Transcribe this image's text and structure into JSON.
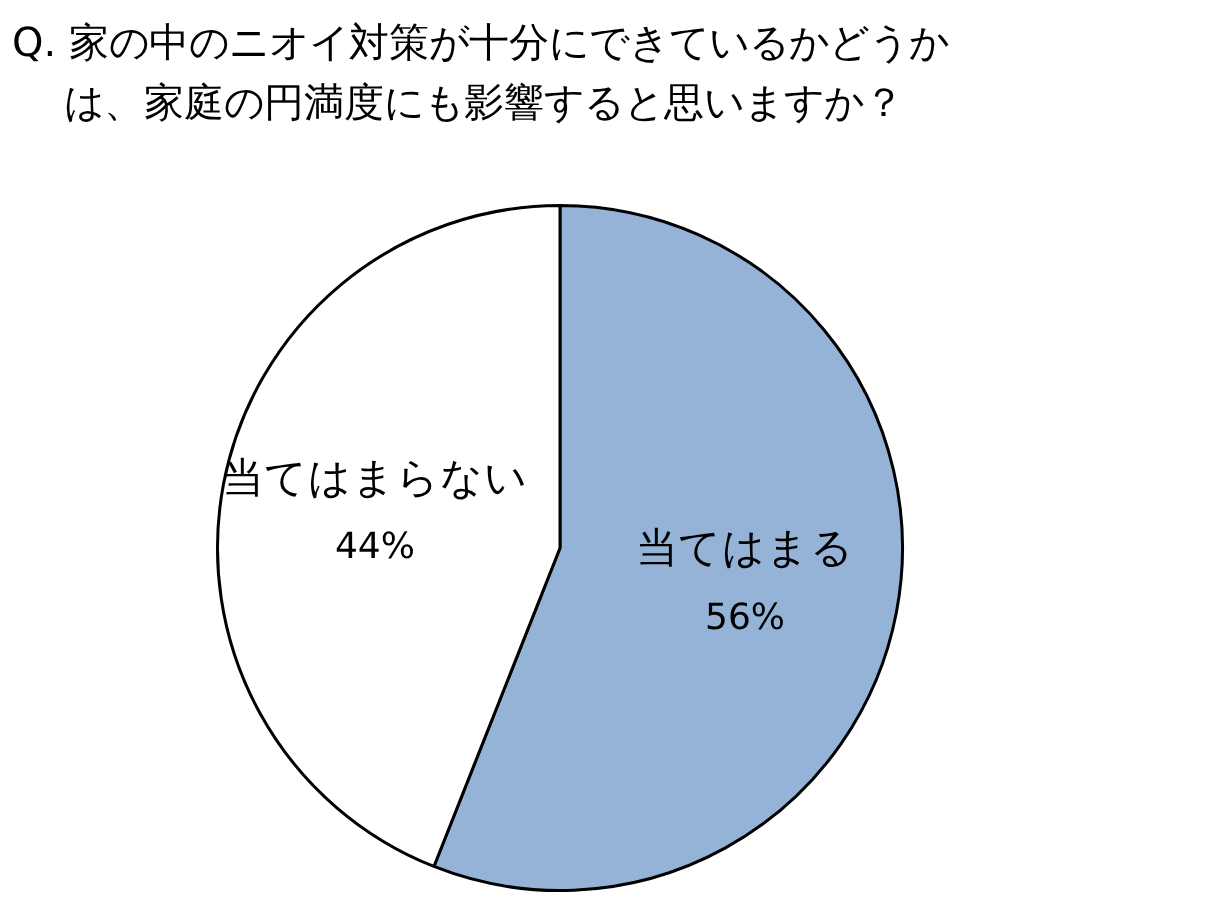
{
  "chart_data": {
    "type": "pie",
    "title": "Q. 家の中のニオイ対策が十分にできているかどうかは、家庭の円満度にも影響すると思いますか？",
    "categories": [
      "当てはまる",
      "当てはまらない"
    ],
    "values": [
      56,
      44
    ],
    "value_labels": [
      "56%",
      "44%"
    ],
    "colors": [
      "#95b3d7",
      "#ffffff"
    ],
    "legend": false
  }
}
